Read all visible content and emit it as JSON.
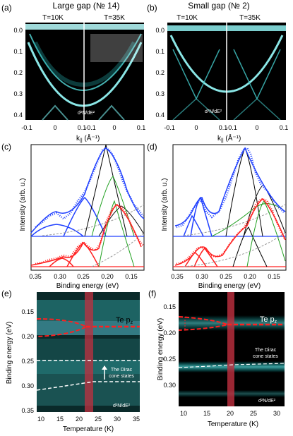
{
  "figure": {
    "panels": [
      {
        "letter": "(a)",
        "title": "Large gap (№ 14)",
        "subtitles": [
          "T=10K",
          "T=35K"
        ]
      },
      {
        "letter": "(b)",
        "title": "Small gap (№ 2)",
        "subtitles": [
          "T=10K",
          "T=35K"
        ]
      },
      {
        "letter": "(c)"
      },
      {
        "letter": "(d)"
      },
      {
        "letter": "(e)"
      },
      {
        "letter": "(f)"
      }
    ],
    "arpes": {
      "y_ticks": [
        "0.0",
        "0.1",
        "0.2",
        "0.3",
        "0.4"
      ],
      "x_ticks": [
        "-0.1",
        "0",
        "0.1",
        "-0.1",
        "0",
        "0.1"
      ],
      "xlabel": "k",
      "xlabel_sub": "||",
      "xlabel_unit": "(Å⁻¹)",
      "inset": "d²N/dE²"
    },
    "edc": {
      "ylabel": "Intensity (arb. u.)",
      "xlabel": "Binding energy (eV)",
      "x_ticks": [
        "0.35",
        "0.30",
        "0.25",
        "0.20",
        "0.15"
      ]
    },
    "temp_e": {
      "ylabel": "Binding energy (eV)",
      "xlabel": "Temperature (K)",
      "y_ticks": [
        "0.15",
        "0.20",
        "0.25",
        "0.30",
        "0.35"
      ],
      "x_ticks": [
        "10",
        "15",
        "20",
        "25",
        "30",
        "35"
      ],
      "band_label": "Te p",
      "band_sub": "z",
      "dirac_label": [
        "The Dirac",
        "cone states"
      ],
      "inset": "d²N/dE²"
    },
    "temp_f": {
      "ylabel": "Binding energy (eV)",
      "xlabel": "Temperature (K)",
      "y_ticks": [
        "0.15",
        "0.20",
        "0.25",
        "0.30"
      ],
      "x_ticks": [
        "10",
        "15",
        "20",
        "25",
        "30"
      ],
      "band_label": "Te p",
      "band_sub": "z",
      "dirac_label": [
        "The Dirac",
        "cone states"
      ],
      "inset": "d²N/dE²"
    }
  },
  "chart_data": [
    {
      "type": "line",
      "panel": "(c)",
      "xlabel": "Binding energy (eV)",
      "ylabel": "Intensity (arb. u.)",
      "series": [
        {
          "color": "#2040ff",
          "x": [
            0.35,
            0.31,
            0.3,
            0.28,
            0.25,
            0.22,
            0.2,
            0.18,
            0.15
          ],
          "y": [
            0.3,
            0.34,
            0.36,
            0.32,
            0.62,
            0.7,
            0.95,
            0.8,
            0.5
          ]
        },
        {
          "color": "#ff2020",
          "x": [
            0.35,
            0.3,
            0.28,
            0.25,
            0.22,
            0.2,
            0.17,
            0.15
          ],
          "y": [
            0.05,
            0.12,
            0.08,
            0.25,
            0.15,
            0.55,
            0.5,
            0.28
          ]
        }
      ]
    },
    {
      "type": "line",
      "panel": "(d)",
      "xlabel": "Binding energy (eV)",
      "ylabel": "Intensity (arb. u.)",
      "series": [
        {
          "color": "#2040ff",
          "x": [
            0.35,
            0.28,
            0.27,
            0.25,
            0.23,
            0.2,
            0.17,
            0.15
          ],
          "y": [
            0.3,
            0.35,
            0.6,
            0.55,
            0.4,
            0.98,
            0.5,
            0.35
          ]
        },
        {
          "color": "#ff2020",
          "x": [
            0.35,
            0.28,
            0.27,
            0.25,
            0.22,
            0.2,
            0.17,
            0.15
          ],
          "y": [
            0.05,
            0.1,
            0.22,
            0.2,
            0.12,
            0.32,
            0.58,
            0.3
          ]
        }
      ]
    }
  ],
  "colors": {
    "blue": "#2040ff",
    "red": "#ff2020",
    "green": "#20a020",
    "cyan": "#40e0e0",
    "bar": "#c03040"
  }
}
